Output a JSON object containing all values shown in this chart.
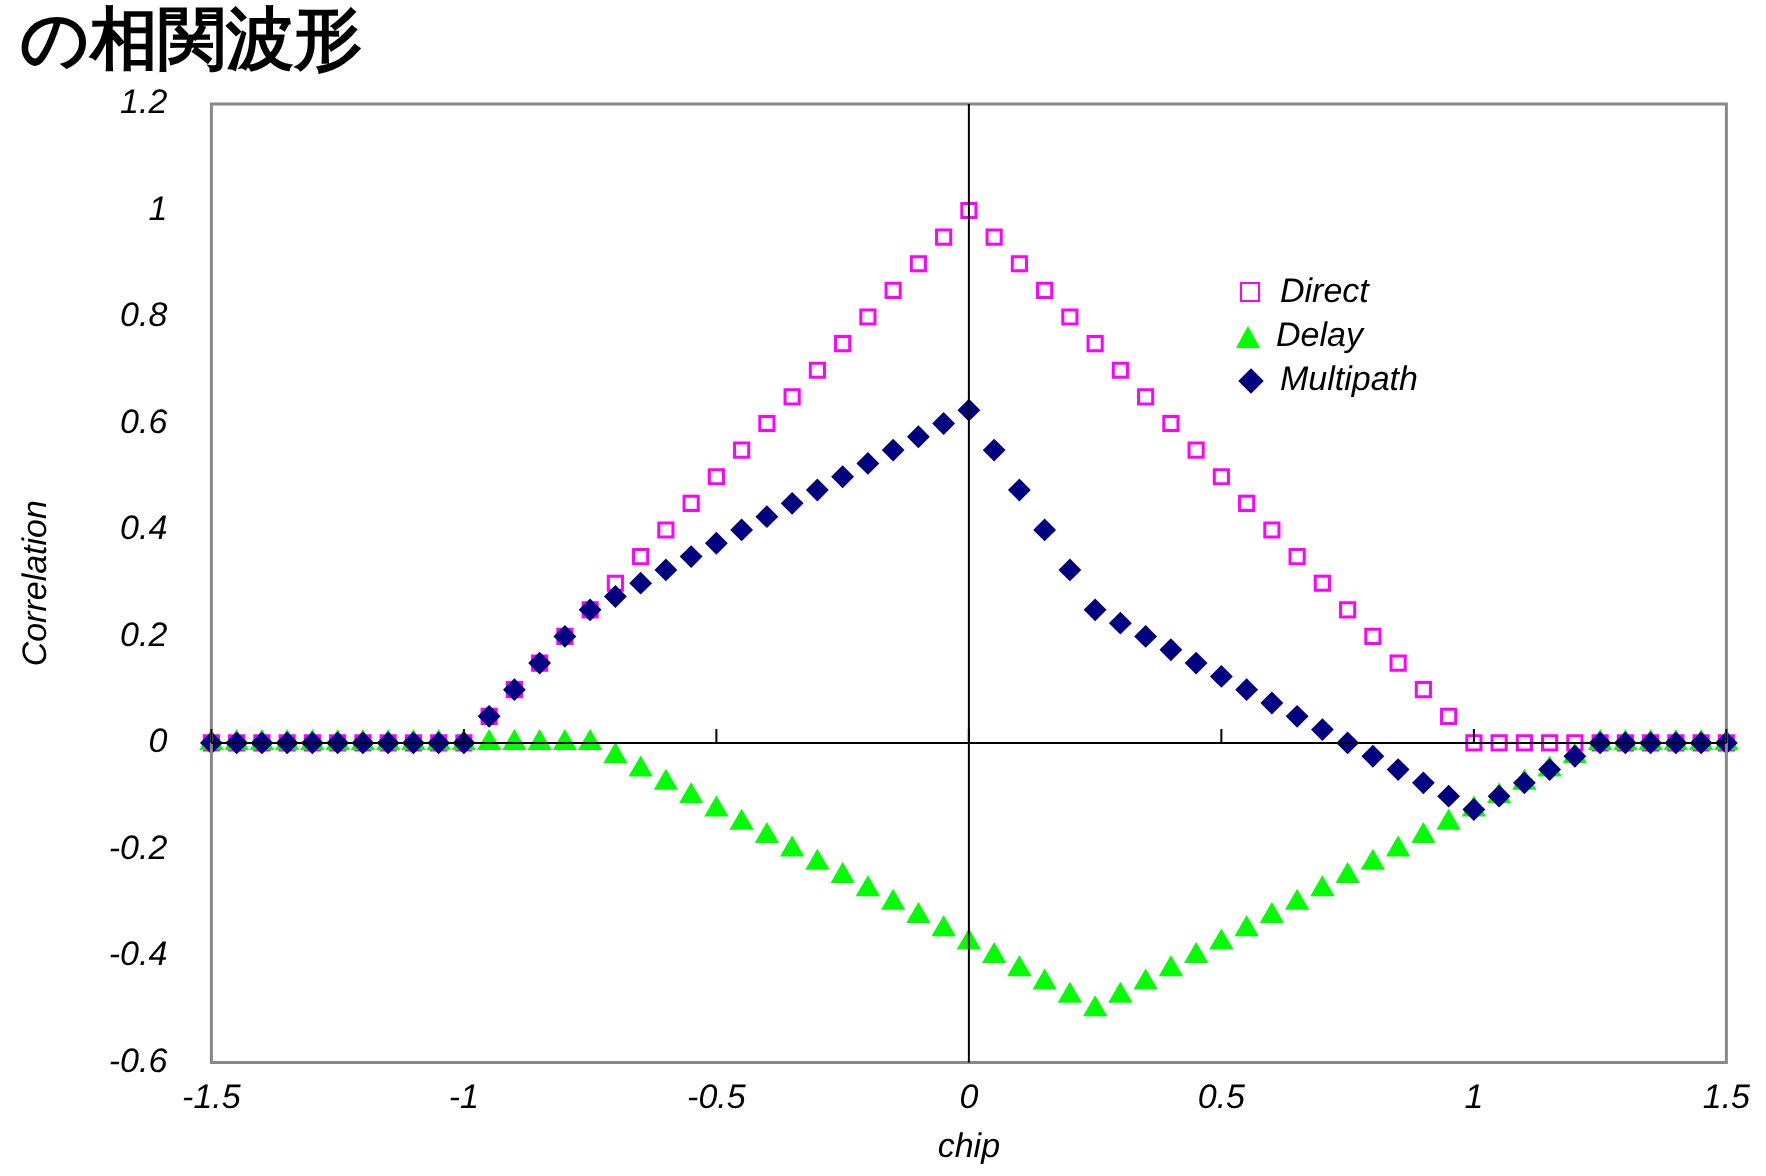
{
  "chart_data": {
    "type": "scatter",
    "title": "の相関波形",
    "xlabel": "chip",
    "ylabel": "Correlation",
    "x": [
      -1.5,
      -1.45,
      -1.4,
      -1.35,
      -1.3,
      -1.25,
      -1.2,
      -1.15,
      -1.1,
      -1.05,
      -1,
      -0.95,
      -0.9,
      -0.85,
      -0.8,
      -0.75,
      -0.7,
      -0.65,
      -0.6,
      -0.55,
      -0.5,
      -0.45,
      -0.4,
      -0.35,
      -0.3,
      -0.25,
      -0.2,
      -0.15,
      -0.1,
      -0.05,
      0,
      0.05,
      0.1,
      0.15,
      0.2,
      0.25,
      0.3,
      0.35,
      0.4,
      0.45,
      0.5,
      0.55,
      0.6,
      0.65,
      0.7,
      0.75,
      0.8,
      0.85,
      0.9,
      0.95,
      1,
      1.05,
      1.1,
      1.15,
      1.2,
      1.25,
      1.3,
      1.35,
      1.4,
      1.45,
      1.5
    ],
    "series": [
      {
        "name": "Direct",
        "color": "#ff00ff",
        "marker": "square",
        "values": [
          0,
          0,
          0,
          0,
          0,
          0,
          0,
          0,
          0,
          0,
          0,
          0.05,
          0.1,
          0.15,
          0.2,
          0.25,
          0.3,
          0.35,
          0.4,
          0.45,
          0.5,
          0.55,
          0.6,
          0.65,
          0.7,
          0.75,
          0.8,
          0.85,
          0.9,
          0.95,
          1,
          0.95,
          0.9,
          0.85,
          0.8,
          0.75,
          0.7,
          0.65,
          0.6,
          0.55,
          0.5,
          0.45,
          0.4,
          0.35,
          0.3,
          0.25,
          0.2,
          0.15,
          0.1,
          0.05,
          0,
          0,
          0,
          0,
          0,
          0,
          0,
          0,
          0,
          0,
          0
        ]
      },
      {
        "name": "Delay",
        "color": "#00ff00",
        "marker": "triangle",
        "values": [
          0,
          0,
          0,
          0,
          0,
          0,
          0,
          0,
          0,
          0,
          0,
          0,
          0,
          0,
          0,
          0,
          -0.025,
          -0.05,
          -0.075,
          -0.1,
          -0.125,
          -0.15,
          -0.175,
          -0.2,
          -0.225,
          -0.25,
          -0.275,
          -0.3,
          -0.325,
          -0.35,
          -0.375,
          -0.4,
          -0.425,
          -0.45,
          -0.475,
          -0.5,
          -0.475,
          -0.45,
          -0.425,
          -0.4,
          -0.375,
          -0.35,
          -0.325,
          -0.3,
          -0.275,
          -0.25,
          -0.225,
          -0.2,
          -0.175,
          -0.15,
          -0.125,
          -0.1,
          -0.075,
          -0.05,
          -0.025,
          0,
          0,
          0,
          0,
          0,
          0
        ]
      },
      {
        "name": "Multipath",
        "color": "#000080",
        "marker": "diamond",
        "values": [
          0,
          0,
          0,
          0,
          0,
          0,
          0,
          0,
          0,
          0,
          0,
          0.05,
          0.1,
          0.15,
          0.2,
          0.25,
          0.275,
          0.3,
          0.325,
          0.35,
          0.375,
          0.4,
          0.425,
          0.45,
          0.475,
          0.5,
          0.525,
          0.55,
          0.575,
          0.6,
          0.625,
          0.55,
          0.475,
          0.4,
          0.325,
          0.25,
          0.225,
          0.2,
          0.175,
          0.15,
          0.125,
          0.1,
          0.075,
          0.05,
          0.025,
          0,
          -0.025,
          -0.05,
          -0.075,
          -0.1,
          -0.125,
          -0.1,
          -0.075,
          -0.05,
          -0.025,
          0,
          0,
          0,
          0,
          0,
          0
        ]
      }
    ],
    "xlim": [
      -1.5,
      1.5
    ],
    "xticks": [
      -1.5,
      -1,
      -0.5,
      0,
      0.5,
      1,
      1.5
    ],
    "ylim": [
      -0.6,
      1.2
    ],
    "yticks": [
      -0.6,
      -0.4,
      -0.2,
      0,
      0.2,
      0.4,
      0.6,
      0.8,
      1,
      1.2
    ],
    "legend": "right"
  }
}
